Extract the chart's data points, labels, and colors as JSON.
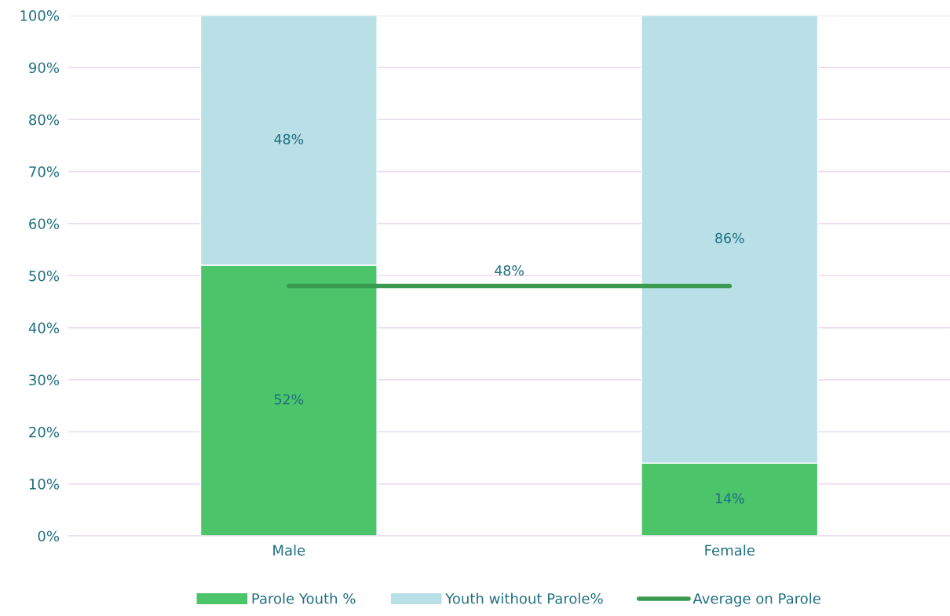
{
  "chart_data": {
    "type": "bar",
    "stacked": true,
    "categories": [
      "Male",
      "Female"
    ],
    "series": [
      {
        "name": "Parole Youth %",
        "color": "#4bc46a",
        "values": [
          52,
          14
        ],
        "value_labels": [
          "52%",
          "14%"
        ]
      },
      {
        "name": "Youth without Parole%",
        "color": "#b9dfe7",
        "values": [
          48,
          86
        ],
        "value_labels": [
          "48%",
          "86%"
        ]
      },
      {
        "name": "Average on Parole",
        "type": "line",
        "color": "#3a9a50",
        "values": [
          48,
          48
        ]
      }
    ],
    "annotations": [
      {
        "text": "48%",
        "y": 48
      }
    ],
    "ylim": [
      0,
      100
    ],
    "yticks": [
      {
        "value": 0,
        "label": "0%"
      },
      {
        "value": 10,
        "label": "10%"
      },
      {
        "value": 20,
        "label": "20%"
      },
      {
        "value": 30,
        "label": "30%"
      },
      {
        "value": 40,
        "label": "40%"
      },
      {
        "value": 50,
        "label": "50%"
      },
      {
        "value": 60,
        "label": "60%"
      },
      {
        "value": 70,
        "label": "70%"
      },
      {
        "value": 80,
        "label": "80%"
      },
      {
        "value": 90,
        "label": "90%"
      },
      {
        "value": 100,
        "label": "100%"
      }
    ],
    "grid": "y",
    "legend": "bottom"
  }
}
